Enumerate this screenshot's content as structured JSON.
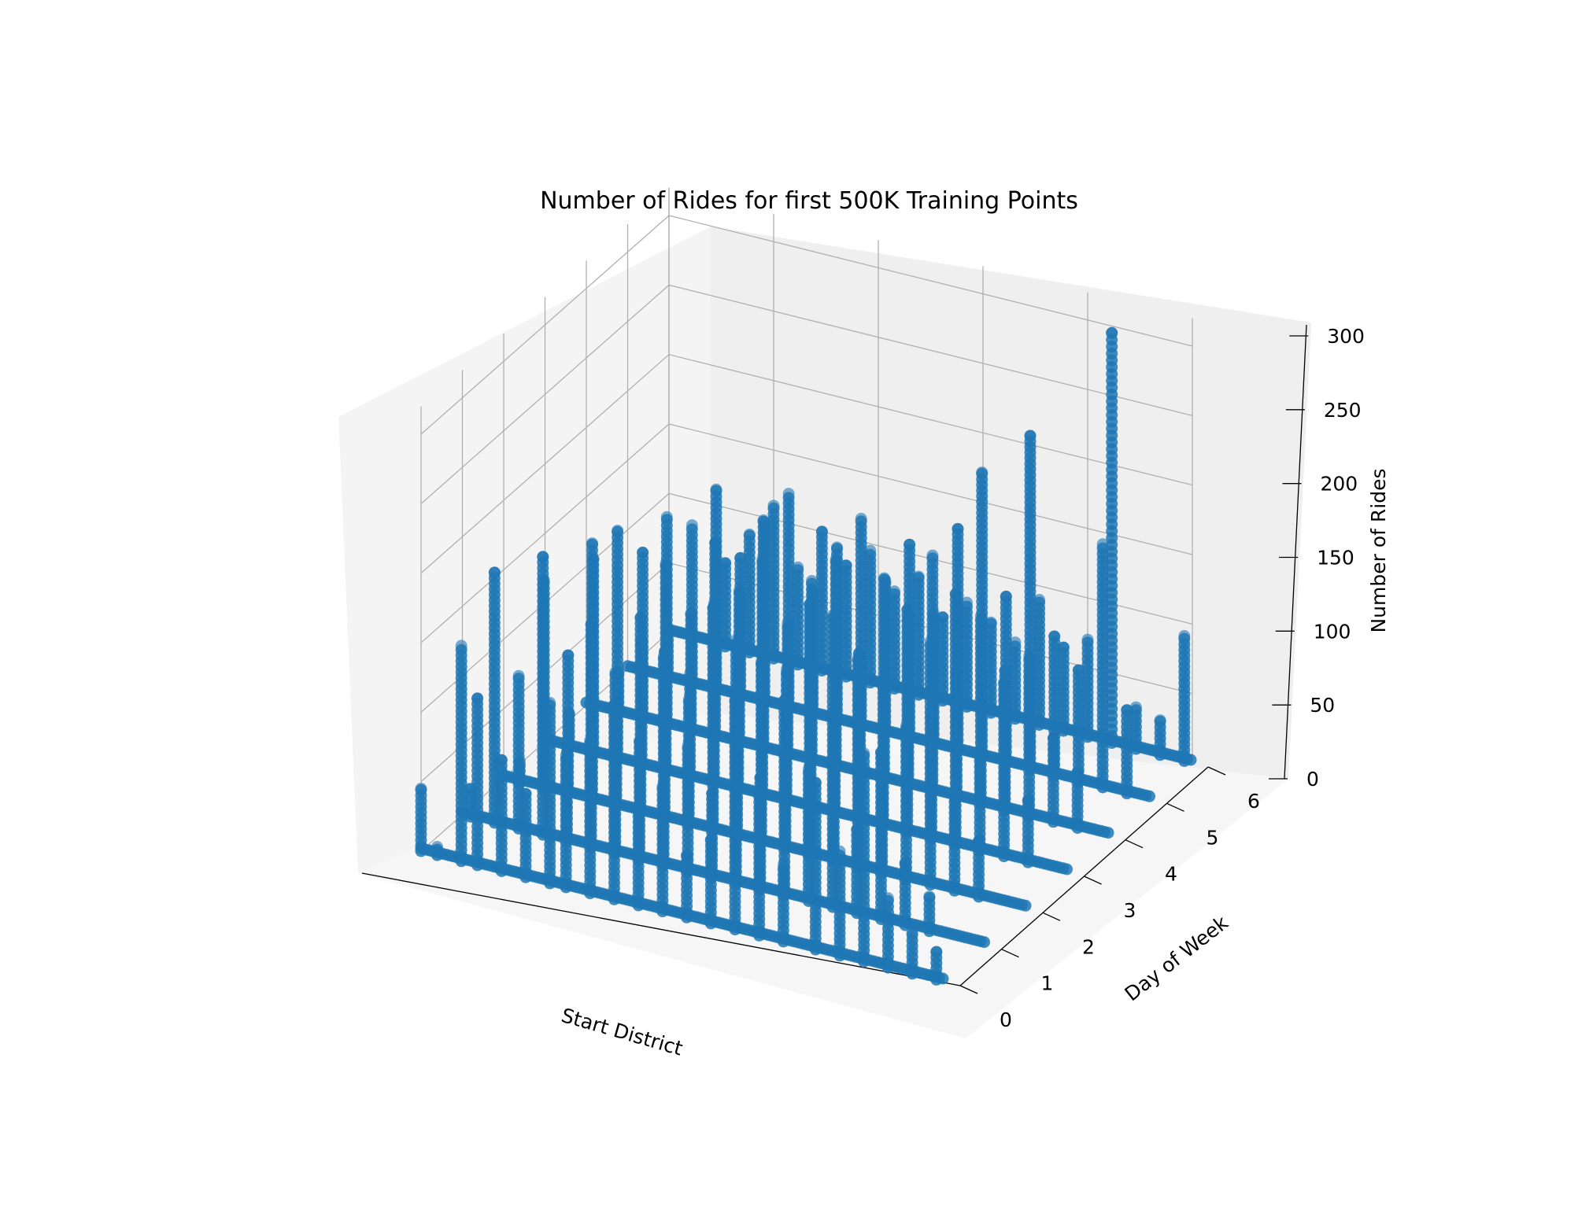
{
  "chart_data": {
    "type": "scatter",
    "projection": "3d",
    "title": "Number of Rides for first 500K Training Points",
    "xlabel": "Start District",
    "ylabel": "Day of Week",
    "zlabel": "Number of Rides",
    "x_tick_labels_shown": false,
    "xlim": [
      1,
      66
    ],
    "ylim": [
      0,
      6
    ],
    "zlim": [
      0,
      300
    ],
    "y_ticks": [
      "0",
      "1",
      "2",
      "3",
      "4",
      "5",
      "6"
    ],
    "z_ticks": [
      "0",
      "50",
      "100",
      "150",
      "200",
      "250",
      "300"
    ],
    "grid": true,
    "marker_color": "#1f77b4",
    "days": [
      {
        "day": 0,
        "peaks": [
          [
            1,
            45
          ],
          [
            3,
            6
          ],
          [
            6,
            155
          ],
          [
            8,
            120
          ],
          [
            11,
            80
          ],
          [
            14,
            60
          ],
          [
            17,
            130
          ],
          [
            19,
            95
          ],
          [
            22,
            110
          ],
          [
            25,
            140
          ],
          [
            28,
            70
          ],
          [
            31,
            90
          ],
          [
            34,
            45
          ],
          [
            37,
            60
          ],
          [
            40,
            165
          ],
          [
            43,
            100
          ],
          [
            46,
            55
          ],
          [
            50,
            120
          ],
          [
            53,
            75
          ],
          [
            56,
            150
          ],
          [
            59,
            50
          ],
          [
            62,
            30
          ],
          [
            65,
            20
          ]
        ]
      },
      {
        "day": 1,
        "peaks": [
          [
            2,
            20
          ],
          [
            5,
            180
          ],
          [
            8,
            110
          ],
          [
            11,
            200
          ],
          [
            14,
            70
          ],
          [
            17,
            160
          ],
          [
            20,
            130
          ],
          [
            23,
            85
          ],
          [
            26,
            150
          ],
          [
            29,
            90
          ],
          [
            32,
            60
          ],
          [
            35,
            175
          ],
          [
            38,
            80
          ],
          [
            41,
            140
          ],
          [
            44,
            95
          ],
          [
            47,
            210
          ],
          [
            50,
            60
          ],
          [
            53,
            120
          ],
          [
            56,
            45
          ],
          [
            59,
            25
          ]
        ]
      },
      {
        "day": 2,
        "peaks": [
          [
            3,
            15
          ],
          [
            6,
            150
          ],
          [
            9,
            100
          ],
          [
            12,
            185
          ],
          [
            15,
            60
          ],
          [
            18,
            140
          ],
          [
            21,
            120
          ],
          [
            24,
            90
          ],
          [
            27,
            160
          ],
          [
            30,
            80
          ],
          [
            33,
            130
          ],
          [
            36,
            70
          ],
          [
            39,
            180
          ],
          [
            42,
            100
          ],
          [
            45,
            150
          ],
          [
            48,
            85
          ],
          [
            51,
            110
          ],
          [
            54,
            175
          ],
          [
            57,
            70
          ],
          [
            60,
            40
          ]
        ]
      },
      {
        "day": 3,
        "peaks": [
          [
            4,
            25
          ],
          [
            7,
            140
          ],
          [
            10,
            165
          ],
          [
            13,
            90
          ],
          [
            16,
            150
          ],
          [
            19,
            75
          ],
          [
            22,
            130
          ],
          [
            25,
            105
          ],
          [
            28,
            170
          ],
          [
            31,
            95
          ],
          [
            34,
            145
          ],
          [
            37,
            65
          ],
          [
            40,
            120
          ],
          [
            43,
            100
          ],
          [
            46,
            160
          ],
          [
            49,
            90
          ],
          [
            52,
            180
          ],
          [
            55,
            70
          ],
          [
            58,
            125
          ],
          [
            61,
            45
          ]
        ]
      },
      {
        "day": 4,
        "peaks": [
          [
            5,
            30
          ],
          [
            8,
            120
          ],
          [
            11,
            150
          ],
          [
            14,
            85
          ],
          [
            17,
            140
          ],
          [
            20,
            110
          ],
          [
            23,
            165
          ],
          [
            26,
            95
          ],
          [
            29,
            130
          ],
          [
            32,
            150
          ],
          [
            35,
            80
          ],
          [
            38,
            145
          ],
          [
            41,
            120
          ],
          [
            44,
            170
          ],
          [
            47,
            90
          ],
          [
            50,
            135
          ],
          [
            53,
            100
          ],
          [
            56,
            115
          ],
          [
            59,
            60
          ],
          [
            62,
            40
          ]
        ]
      },
      {
        "day": 5,
        "peaks": [
          [
            6,
            35
          ],
          [
            9,
            115
          ],
          [
            12,
            145
          ],
          [
            15,
            100
          ],
          [
            18,
            130
          ],
          [
            21,
            155
          ],
          [
            24,
            90
          ],
          [
            27,
            125
          ],
          [
            30,
            150
          ],
          [
            33,
            110
          ],
          [
            36,
            140
          ],
          [
            39,
            95
          ],
          [
            42,
            160
          ],
          [
            45,
            205
          ],
          [
            48,
            120
          ],
          [
            51,
            240
          ],
          [
            54,
            100
          ],
          [
            57,
            80
          ],
          [
            60,
            175
          ],
          [
            63,
            60
          ]
        ]
      },
      {
        "day": 6,
        "peaks": [
          [
            8,
            60
          ],
          [
            11,
            85
          ],
          [
            14,
            110
          ],
          [
            17,
            70
          ],
          [
            20,
            100
          ],
          [
            23,
            80
          ],
          [
            26,
            95
          ],
          [
            29,
            70
          ],
          [
            32,
            85
          ],
          [
            35,
            60
          ],
          [
            38,
            75
          ],
          [
            41,
            65
          ],
          [
            44,
            55
          ],
          [
            47,
            90
          ],
          [
            50,
            60
          ],
          [
            53,
            70
          ],
          [
            56,
            295
          ],
          [
            59,
            30
          ],
          [
            62,
            25
          ],
          [
            65,
            90
          ]
        ]
      }
    ]
  }
}
